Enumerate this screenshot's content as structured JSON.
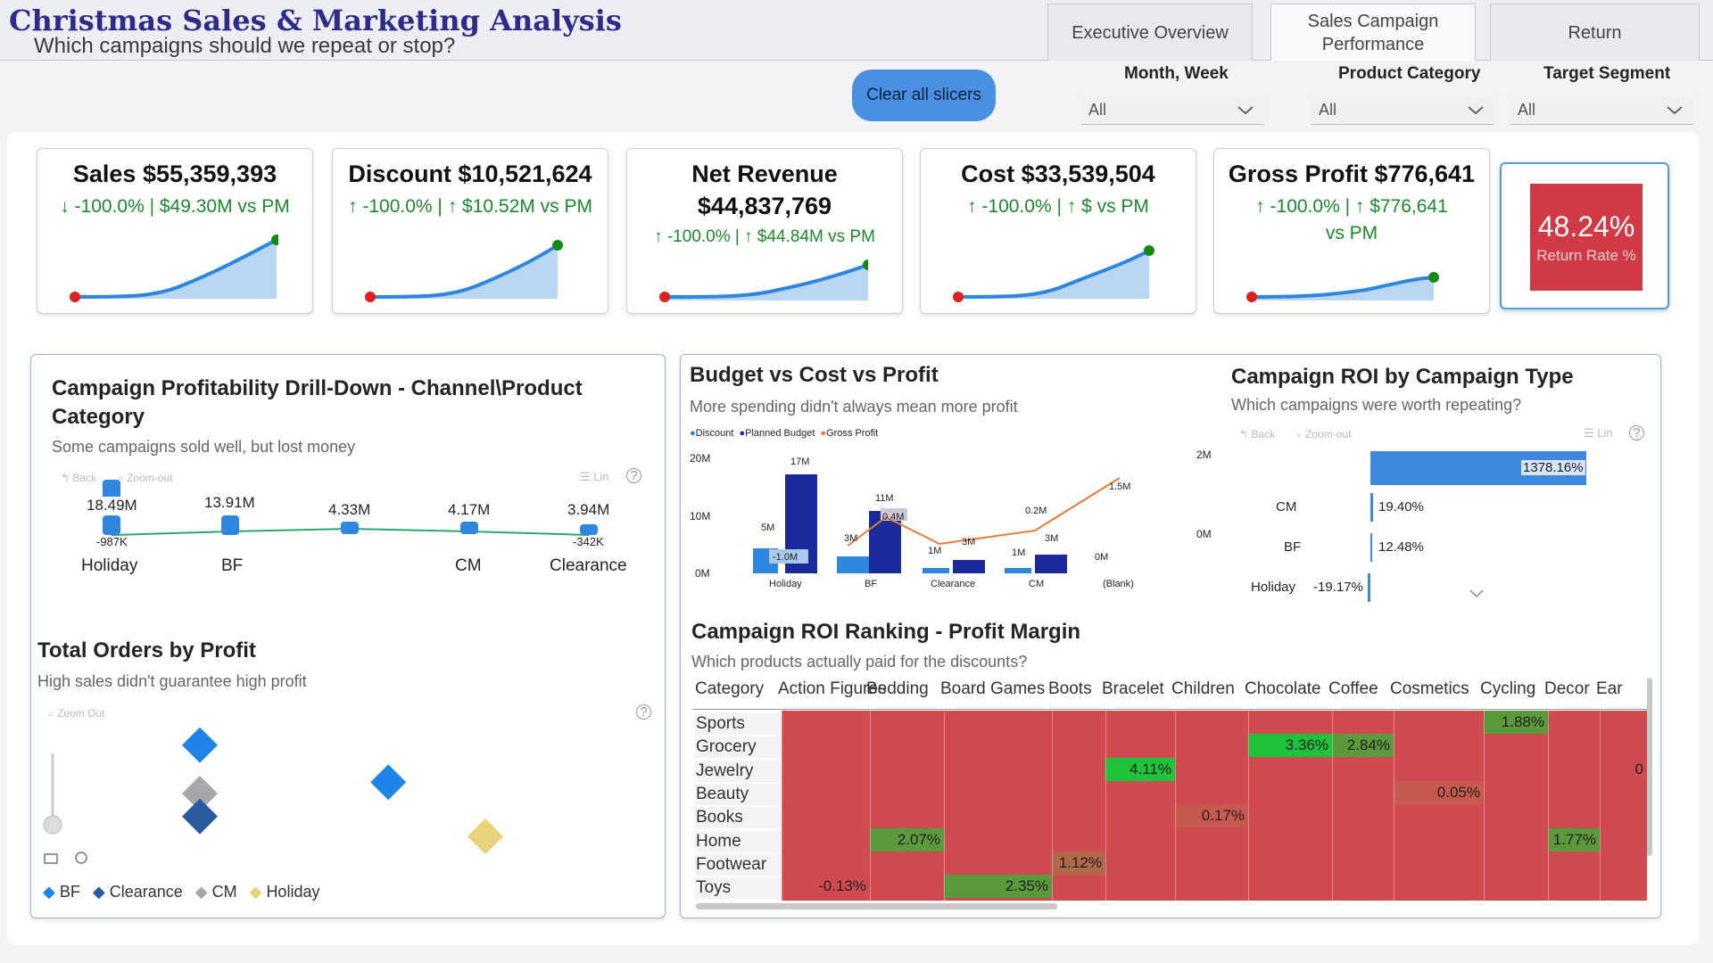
{
  "header": {
    "title": "Christmas Sales & Marketing Analysis",
    "subtitle": "Which campaigns should we repeat or stop?"
  },
  "tabs": [
    {
      "label": "Executive Overview",
      "active": false
    },
    {
      "label": "Sales Campaign Performance",
      "active": true
    },
    {
      "label": "Return",
      "active": false
    }
  ],
  "clear_button": "Clear all slicers",
  "slicers": [
    {
      "label": "Month, Week",
      "value": "All"
    },
    {
      "label": "Product Category",
      "value": "All"
    },
    {
      "label": "Target Segment",
      "value": "All"
    }
  ],
  "kpis": [
    {
      "title": "Sales $55,359,393",
      "sub": "↓ -100.0% | $49.30M vs PM"
    },
    {
      "title": "Discount $10,521,624",
      "sub": "↑ -100.0% | ↑ $10.52M vs PM"
    },
    {
      "title": "Net Revenue $44,837,769",
      "sub": "↑ -100.0% | ↑ $44.84M vs PM"
    },
    {
      "title": "Cost $33,539,504",
      "sub": "↑ -100.0% | ↑ $ vs PM"
    },
    {
      "title": "Gross Profit $776,641",
      "sub": "↑ -100.0% | ↑ $776,641 vs PM"
    }
  ],
  "return_rate": {
    "value": "48.24%",
    "label": "Return Rate %"
  },
  "colors": {
    "accent": "#4a90e2",
    "positive": "#1b8a2a",
    "negative": "#d13a45",
    "heat_base": "#d04b50",
    "heat_green": "#1fc23a",
    "heat_dark_green": "#5b9a3c"
  },
  "toolbar": {
    "back": "Back",
    "zoom_out_hyphen": "Zoom-out",
    "zoom_out": "Zoom Out",
    "lin": "Lin",
    "help": "?"
  },
  "drilldown": {
    "title": "Campaign Profitability Drill-Down - Channel\\Product Category",
    "subtitle": "Some campaigns sold well, but lost money",
    "chart_data": {
      "type": "line",
      "categories": [
        "Holiday",
        "BF",
        "",
        "CM",
        "Clearance"
      ],
      "series": [
        {
          "values": [
            18.49,
            13.91,
            4.33,
            4.17,
            3.94
          ],
          "labels": [
            "18.49M",
            "13.91M",
            "4.33M",
            "4.17M",
            "3.94M"
          ]
        },
        {
          "values": [
            -0.987,
            null,
            null,
            null,
            -0.342
          ],
          "labels": [
            "-987K",
            "",
            "",
            "",
            "-342K"
          ]
        }
      ]
    }
  },
  "orders": {
    "title": "Total Orders by Profit",
    "subtitle": "High sales didn't guarantee high profit",
    "chart_data": {
      "type": "scatter",
      "legend": [
        {
          "name": "BF",
          "color": "#1f84e8"
        },
        {
          "name": "Clearance",
          "color": "#2c5aa0"
        },
        {
          "name": "CM",
          "color": "#a8a6ac"
        },
        {
          "name": "Holiday",
          "color": "#e8d37c"
        }
      ],
      "points": [
        {
          "series": "BF",
          "x": 0.25,
          "y": 0.84
        },
        {
          "series": "CM",
          "x": 0.25,
          "y": 0.5
        },
        {
          "series": "Clearance",
          "x": 0.25,
          "y": 0.34
        },
        {
          "series": "BF",
          "x": 0.58,
          "y": 0.58
        },
        {
          "series": "Holiday",
          "x": 0.75,
          "y": 0.2
        }
      ]
    }
  },
  "budget": {
    "title": "Budget vs Cost vs Profit",
    "subtitle": "More spending didn't always mean more profit",
    "legend": [
      "Discount",
      "Planned Budget",
      "Gross Profit"
    ],
    "yticks": [
      "20M",
      "10M",
      "0M"
    ],
    "chart_data": {
      "type": "bar",
      "categories": [
        "Holiday",
        "BF",
        "Clearance",
        "CM",
        "(Blank)"
      ],
      "series": [
        {
          "name": "Discount",
          "values": [
            5,
            3,
            1,
            1,
            null
          ],
          "labels": [
            "5M",
            "3M",
            "1M",
            "1M",
            ""
          ]
        },
        {
          "name": "Planned Budget",
          "values": [
            17,
            11,
            3,
            3,
            0
          ],
          "labels": [
            "17M",
            "11M",
            "3M",
            "3M",
            "0M"
          ]
        },
        {
          "name": "Gross Profit",
          "values": [
            -1.0,
            0.4,
            0.2,
            null,
            1.5
          ],
          "labels": [
            "-1.0M",
            "0.4M",
            "0.2M",
            "",
            "1.5M"
          ]
        }
      ]
    }
  },
  "roi_type": {
    "title": "Campaign ROI by Campaign Type",
    "subtitle": "Which campaigns were worth repeating?",
    "yticks": [
      "2M",
      "0M"
    ],
    "chart_data": {
      "type": "bar",
      "categories": [
        "",
        "CM",
        "BF",
        "Holiday"
      ],
      "values": [
        1378.16,
        19.4,
        12.48,
        -19.17
      ],
      "labels": [
        "1378.16%",
        "19.40%",
        "12.48%",
        "-19.17%"
      ]
    }
  },
  "ranking": {
    "title": "Campaign ROI Ranking - Profit Margin",
    "subtitle": "Which products actually paid for the discounts?",
    "header_label": "Category",
    "columns": [
      "Action Figures",
      "Bedding",
      "Board Games",
      "Boots",
      "Bracelet",
      "Children",
      "Chocolate",
      "Coffee",
      "Cosmetics",
      "Cycling",
      "Decor",
      "Ear"
    ],
    "rows": [
      "Sports",
      "Grocery",
      "Jewelry",
      "Beauty",
      "Books",
      "Home",
      "Footwear",
      "Toys"
    ],
    "chart_data": {
      "type": "heatmap",
      "cells": [
        {
          "row": "Sports",
          "col": "Cycling",
          "value": "1.88%"
        },
        {
          "row": "Grocery",
          "col": "Chocolate",
          "value": "3.36%"
        },
        {
          "row": "Grocery",
          "col": "Coffee",
          "value": "2.84%"
        },
        {
          "row": "Jewelry",
          "col": "Bracelet",
          "value": "4.11%"
        },
        {
          "row": "Jewelry",
          "col": "Ear",
          "value": "0"
        },
        {
          "row": "Beauty",
          "col": "Cosmetics",
          "value": "0.05%"
        },
        {
          "row": "Books",
          "col": "Children",
          "value": "0.17%"
        },
        {
          "row": "Home",
          "col": "Bedding",
          "value": "2.07%"
        },
        {
          "row": "Home",
          "col": "Decor",
          "value": "1.77%"
        },
        {
          "row": "Footwear",
          "col": "Boots",
          "value": "1.12%"
        },
        {
          "row": "Toys",
          "col": "Action Figures",
          "value": "-0.13%"
        },
        {
          "row": "Toys",
          "col": "Board Games",
          "value": "2.35%"
        }
      ]
    }
  }
}
